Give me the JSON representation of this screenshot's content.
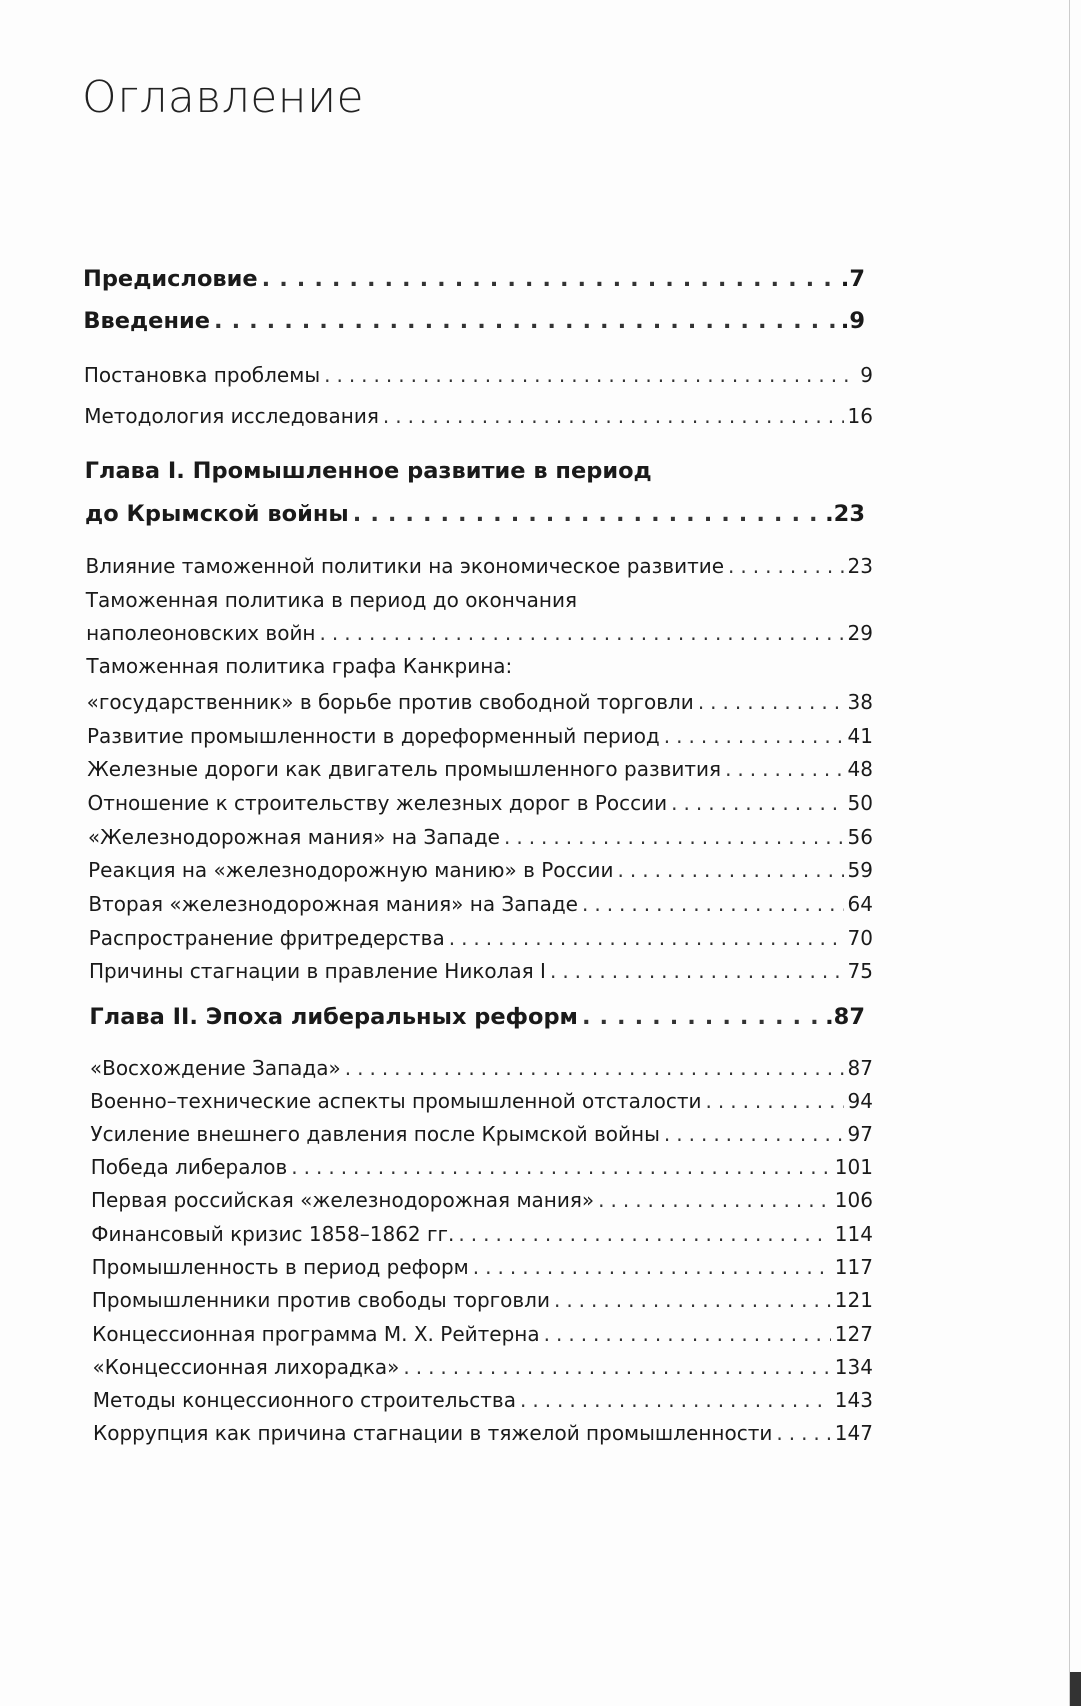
{
  "title": "Оглавление",
  "entries": [
    {
      "level": "main",
      "lines": [
        "Предисловие"
      ],
      "page": ".7"
    },
    {
      "level": "main",
      "lines": [
        "Введение"
      ],
      "page": ".9"
    },
    {
      "level": "sub",
      "lines": [
        "Постановка проблемы"
      ],
      "page": "9"
    },
    {
      "level": "sub",
      "lines": [
        "Методология исследования"
      ],
      "page": "16"
    },
    {
      "level": "main",
      "lines": [
        "Глава I. Промышленное развитие в период",
        "до Крымской войны"
      ],
      "page": ".23"
    },
    {
      "level": "sub",
      "lines": [
        "Влияние таможенной политики на экономическое развитие"
      ],
      "page": "23"
    },
    {
      "level": "sub",
      "lines": [
        "Таможенная политика в период до окончания",
        "наполеоновских войн"
      ],
      "page": "29"
    },
    {
      "level": "sub",
      "lines": [
        "Таможенная политика графа Канкрина:",
        "«государственник» в борьбе против свободной торговли"
      ],
      "page": "38"
    },
    {
      "level": "sub",
      "lines": [
        "Развитие промышленности в дореформенный период"
      ],
      "page": "41"
    },
    {
      "level": "sub",
      "lines": [
        "Железные дороги как двигатель промышленного развития"
      ],
      "page": "48"
    },
    {
      "level": "sub",
      "lines": [
        "Отношение к строительству железных дорог в России"
      ],
      "page": "50"
    },
    {
      "level": "sub",
      "lines": [
        "«Железнодорожная мания» на Западе"
      ],
      "page": "56"
    },
    {
      "level": "sub",
      "lines": [
        "Реакция на «железнодорожную манию» в России"
      ],
      "page": "59"
    },
    {
      "level": "sub",
      "lines": [
        "Вторая «железнодорожная мания» на Западе"
      ],
      "page": "64"
    },
    {
      "level": "sub",
      "lines": [
        "Распространение фритредерства"
      ],
      "page": "70"
    },
    {
      "level": "sub",
      "lines": [
        "Причины стагнации в правление Николая I"
      ],
      "page": "75"
    },
    {
      "level": "main",
      "lines": [
        "Глава II. Эпоха либеральных реформ"
      ],
      "page": ".87"
    },
    {
      "level": "sub",
      "lines": [
        "«Восхождение Запада»"
      ],
      "page": "87"
    },
    {
      "level": "sub",
      "lines": [
        "Военно–технические аспекты промышленной отсталости"
      ],
      "page": "94"
    },
    {
      "level": "sub",
      "lines": [
        "Усиление внешнего давления после Крымской войны"
      ],
      "page": "97"
    },
    {
      "level": "sub",
      "lines": [
        "Победа либералов"
      ],
      "page": "101"
    },
    {
      "level": "sub",
      "lines": [
        "Первая российская «железнодорожная мания»"
      ],
      "page": "106"
    },
    {
      "level": "sub",
      "lines": [
        "Финансовый кризис 1858–1862 гг."
      ],
      "page": "114"
    },
    {
      "level": "sub",
      "lines": [
        "Промышленность в период реформ"
      ],
      "page": "117"
    },
    {
      "level": "sub",
      "lines": [
        "Промышленники против свободы торговли"
      ],
      "page": "121"
    },
    {
      "level": "sub",
      "lines": [
        "Концессионная программа М. Х. Рейтерна"
      ],
      "page": "127"
    },
    {
      "level": "sub",
      "lines": [
        "«Концессионная лихорадка»"
      ],
      "page": "134"
    },
    {
      "level": "sub",
      "lines": [
        "Методы концессионного строительства"
      ],
      "page": "143"
    },
    {
      "level": "sub",
      "lines": [
        "Коррупция как причина стагнации в тяжелой промышленности"
      ],
      "page": "147"
    }
  ]
}
